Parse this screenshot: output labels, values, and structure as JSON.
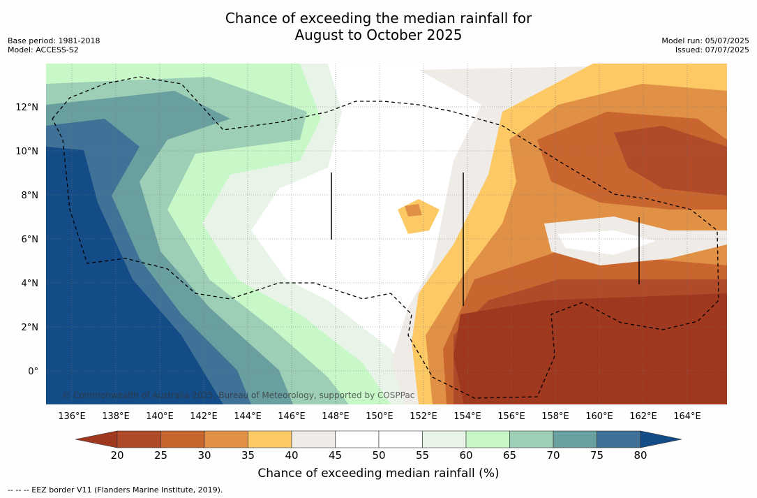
{
  "title_line1": "Chance of exceeding the median rainfall for",
  "title_line2": "August to October 2025",
  "base_period": "Base period: 1981-2018",
  "model": "Model: ACCESS-S2",
  "model_run": "Model run: 05/07/2025",
  "issued": "Issued: 07/07/2025",
  "copyright": "© Commonwealth of Australia 2025, Bureau of Meteorology, supported by COSPPac",
  "footnote": "--  --  -- EEZ border V11 (Flanders Marine Institute, 2019).",
  "colorbar": {
    "title": "Chance of exceeding median rainfall (%)",
    "labels": [
      "20",
      "25",
      "30",
      "35",
      "40",
      "45",
      "50",
      "55",
      "60",
      "65",
      "70",
      "75",
      "80"
    ],
    "colors": [
      "#a0381f",
      "#b04a28",
      "#c9652f",
      "#e09145",
      "#fdc964",
      "#efebe6",
      "#ffffff",
      "#ffffff",
      "#e8f4e8",
      "#c8f8c8",
      "#9ccfb6",
      "#6a9fa0",
      "#3f7296",
      "#144c87"
    ]
  },
  "axes": {
    "lon_labels": [
      "136°E",
      "138°E",
      "140°E",
      "142°E",
      "144°E",
      "146°E",
      "148°E",
      "150°E",
      "152°E",
      "154°E",
      "156°E",
      "158°E",
      "160°E",
      "162°E",
      "164°E"
    ],
    "lat_labels": [
      "12°N",
      "10°N",
      "8°N",
      "6°N",
      "4°N",
      "2°N",
      "0°"
    ]
  }
}
